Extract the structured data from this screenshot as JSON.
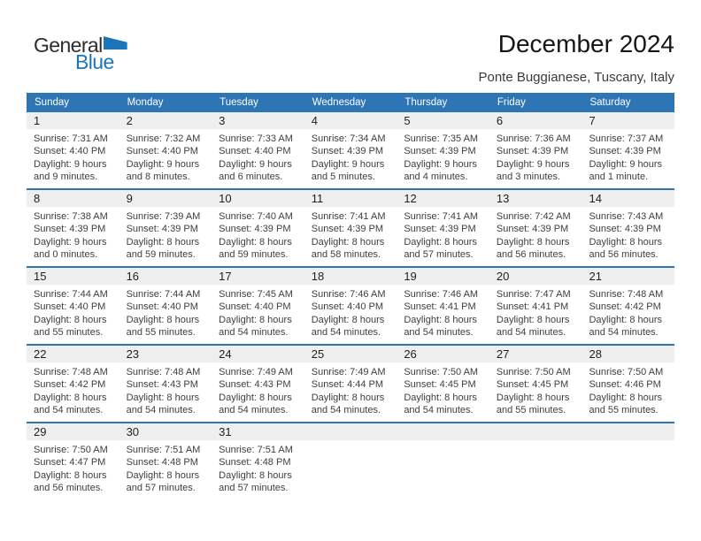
{
  "logo": {
    "general": "General",
    "blue": "Blue"
  },
  "header": {
    "title": "December 2024",
    "subtitle": "Ponte Buggianese, Tuscany, Italy"
  },
  "weekday_headers": [
    "Sunday",
    "Monday",
    "Tuesday",
    "Wednesday",
    "Thursday",
    "Friday",
    "Saturday"
  ],
  "colors": {
    "accent_blue": "#2E75B6",
    "logo_blue": "#1B75BC",
    "day_band_gray": "#EFEFEF",
    "header_text": "#FFFFFF",
    "body_text": "#3E3E3E"
  },
  "weeks": [
    [
      {
        "day": "1",
        "sunrise": "Sunrise: 7:31 AM",
        "sunset": "Sunset: 4:40 PM",
        "daylight1": "Daylight: 9 hours",
        "daylight2": "and 9 minutes."
      },
      {
        "day": "2",
        "sunrise": "Sunrise: 7:32 AM",
        "sunset": "Sunset: 4:40 PM",
        "daylight1": "Daylight: 9 hours",
        "daylight2": "and 8 minutes."
      },
      {
        "day": "3",
        "sunrise": "Sunrise: 7:33 AM",
        "sunset": "Sunset: 4:40 PM",
        "daylight1": "Daylight: 9 hours",
        "daylight2": "and 6 minutes."
      },
      {
        "day": "4",
        "sunrise": "Sunrise: 7:34 AM",
        "sunset": "Sunset: 4:39 PM",
        "daylight1": "Daylight: 9 hours",
        "daylight2": "and 5 minutes."
      },
      {
        "day": "5",
        "sunrise": "Sunrise: 7:35 AM",
        "sunset": "Sunset: 4:39 PM",
        "daylight1": "Daylight: 9 hours",
        "daylight2": "and 4 minutes."
      },
      {
        "day": "6",
        "sunrise": "Sunrise: 7:36 AM",
        "sunset": "Sunset: 4:39 PM",
        "daylight1": "Daylight: 9 hours",
        "daylight2": "and 3 minutes."
      },
      {
        "day": "7",
        "sunrise": "Sunrise: 7:37 AM",
        "sunset": "Sunset: 4:39 PM",
        "daylight1": "Daylight: 9 hours",
        "daylight2": "and 1 minute."
      }
    ],
    [
      {
        "day": "8",
        "sunrise": "Sunrise: 7:38 AM",
        "sunset": "Sunset: 4:39 PM",
        "daylight1": "Daylight: 9 hours",
        "daylight2": "and 0 minutes."
      },
      {
        "day": "9",
        "sunrise": "Sunrise: 7:39 AM",
        "sunset": "Sunset: 4:39 PM",
        "daylight1": "Daylight: 8 hours",
        "daylight2": "and 59 minutes."
      },
      {
        "day": "10",
        "sunrise": "Sunrise: 7:40 AM",
        "sunset": "Sunset: 4:39 PM",
        "daylight1": "Daylight: 8 hours",
        "daylight2": "and 59 minutes."
      },
      {
        "day": "11",
        "sunrise": "Sunrise: 7:41 AM",
        "sunset": "Sunset: 4:39 PM",
        "daylight1": "Daylight: 8 hours",
        "daylight2": "and 58 minutes."
      },
      {
        "day": "12",
        "sunrise": "Sunrise: 7:41 AM",
        "sunset": "Sunset: 4:39 PM",
        "daylight1": "Daylight: 8 hours",
        "daylight2": "and 57 minutes."
      },
      {
        "day": "13",
        "sunrise": "Sunrise: 7:42 AM",
        "sunset": "Sunset: 4:39 PM",
        "daylight1": "Daylight: 8 hours",
        "daylight2": "and 56 minutes."
      },
      {
        "day": "14",
        "sunrise": "Sunrise: 7:43 AM",
        "sunset": "Sunset: 4:39 PM",
        "daylight1": "Daylight: 8 hours",
        "daylight2": "and 56 minutes."
      }
    ],
    [
      {
        "day": "15",
        "sunrise": "Sunrise: 7:44 AM",
        "sunset": "Sunset: 4:40 PM",
        "daylight1": "Daylight: 8 hours",
        "daylight2": "and 55 minutes."
      },
      {
        "day": "16",
        "sunrise": "Sunrise: 7:44 AM",
        "sunset": "Sunset: 4:40 PM",
        "daylight1": "Daylight: 8 hours",
        "daylight2": "and 55 minutes."
      },
      {
        "day": "17",
        "sunrise": "Sunrise: 7:45 AM",
        "sunset": "Sunset: 4:40 PM",
        "daylight1": "Daylight: 8 hours",
        "daylight2": "and 54 minutes."
      },
      {
        "day": "18",
        "sunrise": "Sunrise: 7:46 AM",
        "sunset": "Sunset: 4:40 PM",
        "daylight1": "Daylight: 8 hours",
        "daylight2": "and 54 minutes."
      },
      {
        "day": "19",
        "sunrise": "Sunrise: 7:46 AM",
        "sunset": "Sunset: 4:41 PM",
        "daylight1": "Daylight: 8 hours",
        "daylight2": "and 54 minutes."
      },
      {
        "day": "20",
        "sunrise": "Sunrise: 7:47 AM",
        "sunset": "Sunset: 4:41 PM",
        "daylight1": "Daylight: 8 hours",
        "daylight2": "and 54 minutes."
      },
      {
        "day": "21",
        "sunrise": "Sunrise: 7:48 AM",
        "sunset": "Sunset: 4:42 PM",
        "daylight1": "Daylight: 8 hours",
        "daylight2": "and 54 minutes."
      }
    ],
    [
      {
        "day": "22",
        "sunrise": "Sunrise: 7:48 AM",
        "sunset": "Sunset: 4:42 PM",
        "daylight1": "Daylight: 8 hours",
        "daylight2": "and 54 minutes."
      },
      {
        "day": "23",
        "sunrise": "Sunrise: 7:48 AM",
        "sunset": "Sunset: 4:43 PM",
        "daylight1": "Daylight: 8 hours",
        "daylight2": "and 54 minutes."
      },
      {
        "day": "24",
        "sunrise": "Sunrise: 7:49 AM",
        "sunset": "Sunset: 4:43 PM",
        "daylight1": "Daylight: 8 hours",
        "daylight2": "and 54 minutes."
      },
      {
        "day": "25",
        "sunrise": "Sunrise: 7:49 AM",
        "sunset": "Sunset: 4:44 PM",
        "daylight1": "Daylight: 8 hours",
        "daylight2": "and 54 minutes."
      },
      {
        "day": "26",
        "sunrise": "Sunrise: 7:50 AM",
        "sunset": "Sunset: 4:45 PM",
        "daylight1": "Daylight: 8 hours",
        "daylight2": "and 54 minutes."
      },
      {
        "day": "27",
        "sunrise": "Sunrise: 7:50 AM",
        "sunset": "Sunset: 4:45 PM",
        "daylight1": "Daylight: 8 hours",
        "daylight2": "and 55 minutes."
      },
      {
        "day": "28",
        "sunrise": "Sunrise: 7:50 AM",
        "sunset": "Sunset: 4:46 PM",
        "daylight1": "Daylight: 8 hours",
        "daylight2": "and 55 minutes."
      }
    ],
    [
      {
        "day": "29",
        "sunrise": "Sunrise: 7:50 AM",
        "sunset": "Sunset: 4:47 PM",
        "daylight1": "Daylight: 8 hours",
        "daylight2": "and 56 minutes."
      },
      {
        "day": "30",
        "sunrise": "Sunrise: 7:51 AM",
        "sunset": "Sunset: 4:48 PM",
        "daylight1": "Daylight: 8 hours",
        "daylight2": "and 57 minutes."
      },
      {
        "day": "31",
        "sunrise": "Sunrise: 7:51 AM",
        "sunset": "Sunset: 4:48 PM",
        "daylight1": "Daylight: 8 hours",
        "daylight2": "and 57 minutes."
      },
      {
        "day": "",
        "sunrise": "",
        "sunset": "",
        "daylight1": "",
        "daylight2": ""
      },
      {
        "day": "",
        "sunrise": "",
        "sunset": "",
        "daylight1": "",
        "daylight2": ""
      },
      {
        "day": "",
        "sunrise": "",
        "sunset": "",
        "daylight1": "",
        "daylight2": ""
      },
      {
        "day": "",
        "sunrise": "",
        "sunset": "",
        "daylight1": "",
        "daylight2": ""
      }
    ]
  ]
}
